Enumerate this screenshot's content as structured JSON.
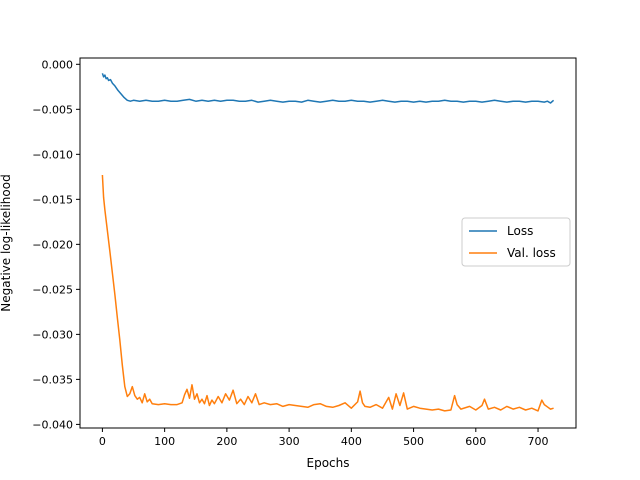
{
  "chart_data": {
    "type": "line",
    "title": "",
    "xlabel": "Epochs",
    "ylabel": "Negative log-likelihood",
    "xlim": [
      -36,
      761
    ],
    "ylim": [
      -0.0404,
      0.0007
    ],
    "x_ticks": [
      0,
      100,
      200,
      300,
      400,
      500,
      600,
      700
    ],
    "x_tick_labels": [
      "0",
      "100",
      "200",
      "300",
      "400",
      "500",
      "600",
      "700"
    ],
    "y_ticks": [
      0.0,
      -0.005,
      -0.01,
      -0.015,
      -0.02,
      -0.025,
      -0.03,
      -0.035,
      -0.04
    ],
    "y_tick_labels": [
      "0.000",
      "−0.005",
      "−0.010",
      "−0.015",
      "−0.020",
      "−0.025",
      "−0.030",
      "−0.035",
      "−0.040"
    ],
    "grid": false,
    "legend": {
      "placement": "center-right"
    },
    "series": [
      {
        "name": "Loss",
        "color": "#1f77b4",
        "x": [
          0,
          2,
          4,
          6,
          8,
          10,
          13,
          16,
          20,
          25,
          30,
          35,
          40,
          45,
          50,
          60,
          70,
          80,
          90,
          100,
          110,
          120,
          130,
          140,
          150,
          160,
          170,
          180,
          190,
          200,
          210,
          220,
          230,
          240,
          250,
          260,
          270,
          280,
          290,
          300,
          310,
          320,
          330,
          340,
          350,
          360,
          370,
          380,
          390,
          400,
          410,
          420,
          430,
          440,
          450,
          460,
          470,
          480,
          490,
          500,
          510,
          520,
          530,
          540,
          550,
          560,
          570,
          580,
          590,
          600,
          610,
          620,
          630,
          640,
          650,
          660,
          670,
          680,
          690,
          700,
          710,
          715,
          720,
          725
        ],
        "y": [
          -0.001,
          -0.0014,
          -0.0012,
          -0.0016,
          -0.0015,
          -0.0018,
          -0.0017,
          -0.0021,
          -0.0024,
          -0.0029,
          -0.0033,
          -0.0037,
          -0.004,
          -0.0041,
          -0.004,
          -0.0041,
          -0.004,
          -0.0041,
          -0.0041,
          -0.004,
          -0.0041,
          -0.0041,
          -0.004,
          -0.0039,
          -0.0041,
          -0.004,
          -0.0041,
          -0.004,
          -0.0041,
          -0.004,
          -0.004,
          -0.0041,
          -0.0041,
          -0.004,
          -0.0042,
          -0.0041,
          -0.004,
          -0.0041,
          -0.0042,
          -0.0041,
          -0.0041,
          -0.0042,
          -0.004,
          -0.0041,
          -0.0042,
          -0.0041,
          -0.004,
          -0.0041,
          -0.0041,
          -0.004,
          -0.0041,
          -0.0041,
          -0.0042,
          -0.0041,
          -0.004,
          -0.0041,
          -0.0042,
          -0.0041,
          -0.0041,
          -0.0042,
          -0.0041,
          -0.0042,
          -0.0041,
          -0.0041,
          -0.004,
          -0.0041,
          -0.0041,
          -0.0042,
          -0.0041,
          -0.0041,
          -0.0042,
          -0.0041,
          -0.004,
          -0.0041,
          -0.0042,
          -0.0041,
          -0.0041,
          -0.0042,
          -0.0041,
          -0.0041,
          -0.0042,
          -0.0041,
          -0.0043,
          -0.004
        ]
      },
      {
        "name": "Val. loss",
        "color": "#ff7f0e",
        "x": [
          0,
          2,
          4,
          8,
          12,
          16,
          20,
          24,
          28,
          32,
          36,
          40,
          44,
          48,
          52,
          56,
          60,
          64,
          68,
          72,
          76,
          80,
          90,
          100,
          110,
          120,
          128,
          132,
          136,
          140,
          144,
          148,
          152,
          156,
          160,
          164,
          168,
          172,
          176,
          180,
          186,
          192,
          198,
          204,
          210,
          216,
          222,
          228,
          234,
          240,
          246,
          252,
          260,
          270,
          280,
          290,
          300,
          310,
          320,
          330,
          340,
          350,
          360,
          370,
          380,
          390,
          400,
          410,
          414,
          418,
          422,
          430,
          440,
          450,
          460,
          466,
          472,
          478,
          484,
          490,
          500,
          510,
          520,
          530,
          540,
          550,
          560,
          566,
          570,
          576,
          590,
          600,
          610,
          614,
          620,
          630,
          640,
          650,
          660,
          670,
          680,
          690,
          700,
          706,
          710,
          716,
          720,
          725
        ],
        "y": [
          -0.0123,
          -0.0148,
          -0.0162,
          -0.0185,
          -0.0208,
          -0.0232,
          -0.0256,
          -0.0281,
          -0.0306,
          -0.0334,
          -0.0358,
          -0.0369,
          -0.0366,
          -0.0358,
          -0.0368,
          -0.0372,
          -0.037,
          -0.0376,
          -0.0366,
          -0.0375,
          -0.0372,
          -0.0377,
          -0.0378,
          -0.0377,
          -0.0378,
          -0.0378,
          -0.0376,
          -0.0367,
          -0.0361,
          -0.0371,
          -0.0356,
          -0.0372,
          -0.0366,
          -0.0376,
          -0.0372,
          -0.0377,
          -0.0368,
          -0.0379,
          -0.0373,
          -0.0377,
          -0.0369,
          -0.0376,
          -0.0366,
          -0.0373,
          -0.0362,
          -0.0377,
          -0.0372,
          -0.0378,
          -0.0369,
          -0.0376,
          -0.0366,
          -0.0378,
          -0.0376,
          -0.0378,
          -0.0377,
          -0.038,
          -0.0378,
          -0.0379,
          -0.038,
          -0.0381,
          -0.0378,
          -0.0377,
          -0.038,
          -0.0381,
          -0.0379,
          -0.0376,
          -0.0382,
          -0.0375,
          -0.0363,
          -0.0376,
          -0.038,
          -0.0381,
          -0.0378,
          -0.0382,
          -0.037,
          -0.0383,
          -0.0366,
          -0.0379,
          -0.0365,
          -0.0383,
          -0.038,
          -0.0382,
          -0.0383,
          -0.0384,
          -0.0383,
          -0.0385,
          -0.0384,
          -0.0368,
          -0.0378,
          -0.0383,
          -0.038,
          -0.0384,
          -0.0379,
          -0.0372,
          -0.0383,
          -0.0381,
          -0.0384,
          -0.038,
          -0.0383,
          -0.0381,
          -0.0384,
          -0.0382,
          -0.0385,
          -0.0373,
          -0.0378,
          -0.0381,
          -0.0383,
          -0.0382
        ]
      }
    ]
  }
}
